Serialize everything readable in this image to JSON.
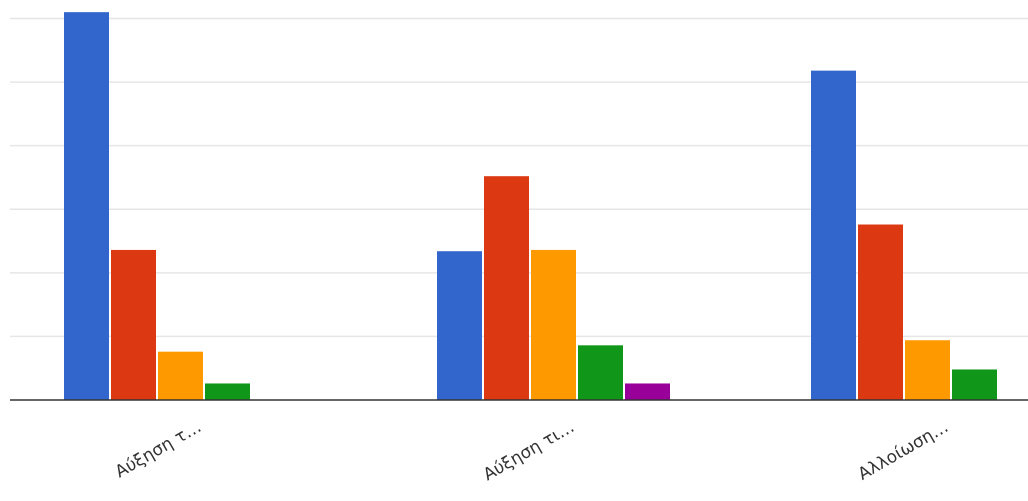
{
  "chart_data": {
    "type": "bar",
    "categories": [
      "Αύξηση τ…",
      "Αύξηση τι…",
      "Αλλοίωση…"
    ],
    "series": [
      {
        "values": [
          30.5,
          11.7,
          25.9
        ],
        "color": "#3366cc"
      },
      {
        "values": [
          11.8,
          17.6,
          13.8
        ],
        "color": "#dc3912"
      },
      {
        "values": [
          3.8,
          11.8,
          4.7
        ],
        "color": "#ff9900"
      },
      {
        "values": [
          1.3,
          4.3,
          2.4
        ],
        "color": "#109618"
      },
      {
        "values": [
          0,
          1.3,
          0
        ],
        "color": "#990099"
      }
    ],
    "ylim": [
      0,
      30
    ],
    "gridlines": [
      0,
      5,
      10,
      15,
      20,
      25,
      30
    ],
    "grid": true,
    "legend": "none",
    "title": "",
    "xlabel": "",
    "ylabel": ""
  }
}
